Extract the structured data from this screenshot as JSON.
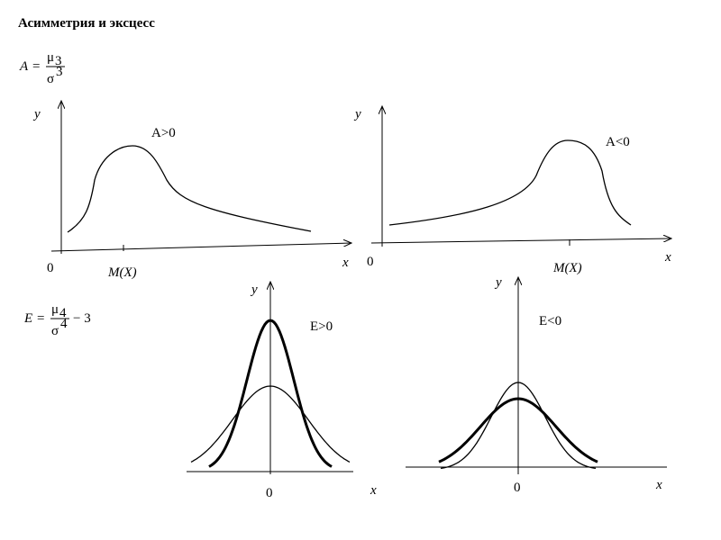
{
  "title": "Асимметрия и эксцесс",
  "formula_a": {
    "symbol": "A",
    "eq": "=",
    "num": "μ",
    "num_index": "3",
    "den": "σ",
    "den_power": "3"
  },
  "formula_e": {
    "symbol": "E",
    "eq": "=",
    "num": "μ",
    "num_index": "4",
    "den": "σ",
    "den_power": "4",
    "tail": "− 3"
  },
  "panels": [
    {
      "y_label": "y",
      "x_label": "x",
      "origin": "0",
      "annotation": "A>0",
      "mean_label": "M(X)"
    },
    {
      "y_label": "y",
      "x_label": "x",
      "origin": "0",
      "annotation": "A<0",
      "mean_label": "M(X)"
    },
    {
      "y_label": "y",
      "x_label": "x",
      "origin": "0",
      "annotation": "E>0"
    },
    {
      "y_label": "y",
      "x_label": "x",
      "origin": "0",
      "annotation": "E<0"
    }
  ]
}
